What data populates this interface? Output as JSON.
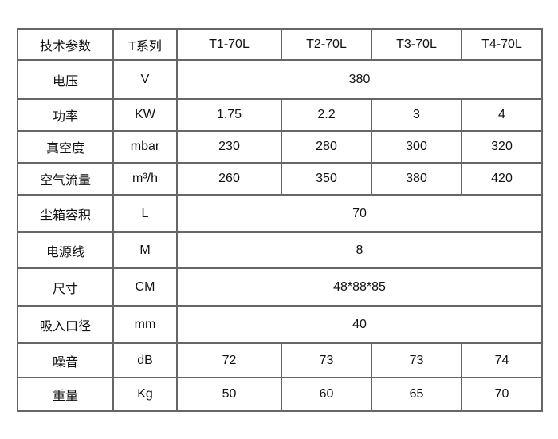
{
  "header": [
    "技术参数",
    "T系列",
    "T1-70L",
    "T2-70L",
    "T3-70L",
    "T4-70L"
  ],
  "rows": [
    {
      "param": "电压",
      "unit": "V",
      "values": [
        "380"
      ]
    },
    {
      "param": "功率",
      "unit": "KW",
      "values": [
        "1.75",
        "2.2",
        "3",
        "4"
      ]
    },
    {
      "param": "真空度",
      "unit": "mbar",
      "values": [
        "230",
        "280",
        "300",
        "320"
      ]
    },
    {
      "param": "空气流量",
      "unit": "m³/h",
      "values": [
        "260",
        "350",
        "380",
        "420"
      ]
    },
    {
      "param": "尘箱容积",
      "unit": "L",
      "values": [
        "70"
      ]
    },
    {
      "param": "电源线",
      "unit": "M",
      "values": [
        "8"
      ]
    },
    {
      "param": "尺寸",
      "unit": "CM",
      "values": [
        "48*88*85"
      ]
    },
    {
      "param": "吸入口径",
      "unit": "mm",
      "values": [
        "40"
      ]
    },
    {
      "param": "噪音",
      "unit": "dB",
      "values": [
        "72",
        "73",
        "73",
        "74"
      ]
    },
    {
      "param": "重量",
      "unit": "Kg",
      "values": [
        "50",
        "60",
        "65",
        "70"
      ]
    }
  ]
}
